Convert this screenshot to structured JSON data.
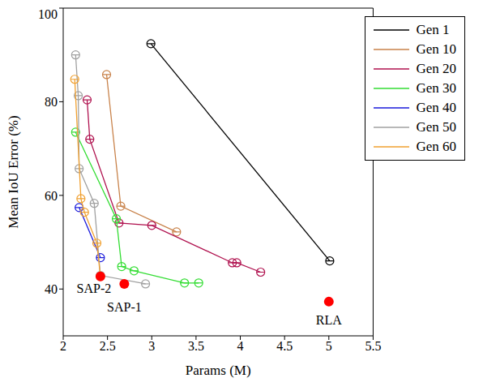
{
  "chart_data": {
    "type": "line",
    "x_label": "Params (M)",
    "y_label": "Mean IoU Error (%)",
    "xlim": [
      2,
      5.5
    ],
    "xticks": [
      2,
      2.5,
      3,
      3.5,
      4,
      4.5,
      5,
      5.5
    ],
    "ylim": [
      30,
      100
    ],
    "yticks": [
      40,
      60,
      80,
      100
    ],
    "legend": "upper right",
    "marker": "open_circle",
    "series": [
      {
        "name": "Gen 1",
        "color": "#000000",
        "x": [
          2.99,
          5.01
        ],
        "values": [
          92.4,
          46.0
        ]
      },
      {
        "name": "Gen 10",
        "color": "#c8824a",
        "x": [
          2.49,
          2.65,
          3.28
        ],
        "values": [
          85.8,
          57.7,
          52.2
        ]
      },
      {
        "name": "Gen 20",
        "color": "#b0124f",
        "x": [
          2.27,
          2.3,
          2.63,
          3.0,
          3.91,
          3.96,
          4.23
        ],
        "values": [
          80.4,
          72.0,
          54.1,
          53.6,
          45.6,
          45.6,
          43.6
        ]
      },
      {
        "name": "Gen 30",
        "color": "#33dd33",
        "x": [
          2.14,
          2.6,
          2.66,
          2.8,
          3.37,
          3.53
        ],
        "values": [
          73.5,
          55.0,
          44.8,
          43.9,
          41.3,
          41.3
        ]
      },
      {
        "name": "Gen 40",
        "color": "#1a1adb",
        "x": [
          2.18,
          2.42
        ],
        "values": [
          57.4,
          46.7
        ]
      },
      {
        "name": "Gen 50",
        "color": "#a0a0a0",
        "x": [
          2.14,
          2.17,
          2.18,
          2.35,
          2.42,
          2.93
        ],
        "values": [
          90.0,
          81.3,
          65.7,
          58.3,
          42.9,
          41.1
        ]
      },
      {
        "name": "Gen 60",
        "color": "#f0a030",
        "x": [
          2.13,
          2.2,
          2.24,
          2.38,
          2.42
        ],
        "values": [
          84.8,
          59.3,
          56.4,
          49.8,
          42.7
        ]
      }
    ],
    "highlights": {
      "color": "#ff0000",
      "marker": "filled_circle",
      "points": [
        {
          "label": "SAP-2",
          "x": 2.42,
          "y": 42.7
        },
        {
          "label": "SAP-1",
          "x": 2.69,
          "y": 41.1
        },
        {
          "label": "RLA",
          "x": 5.0,
          "y": 37.3
        }
      ]
    }
  }
}
